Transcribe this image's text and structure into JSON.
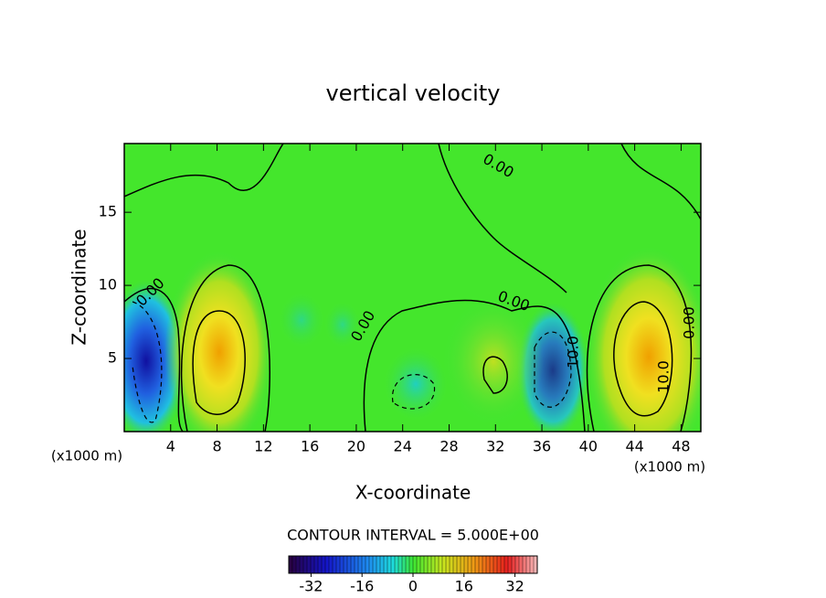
{
  "chart_data": {
    "type": "contour",
    "title": "vertical velocity",
    "x_label": "X-coordinate",
    "y_label": "Z-coordinate",
    "x_unit": "(x1000 m)",
    "y_unit": "(x1000 m)",
    "xlim": [
      0,
      49.7
    ],
    "xticks": [
      4,
      8,
      12,
      16,
      20,
      24,
      28,
      32,
      36,
      40,
      44,
      48
    ],
    "ylim": [
      0,
      19.7
    ],
    "yticks": [
      5,
      10,
      15
    ],
    "contour_interval_label": "CONTOUR INTERVAL = 5.000E+00",
    "contour_labels": [
      "0.00",
      "0.00",
      "0.00",
      "0.00",
      "0.00",
      "10.0",
      "10.0"
    ],
    "colorbar": {
      "clim": [
        -39,
        39
      ],
      "ticks": [
        -32,
        -16,
        0,
        16,
        32
      ]
    }
  }
}
